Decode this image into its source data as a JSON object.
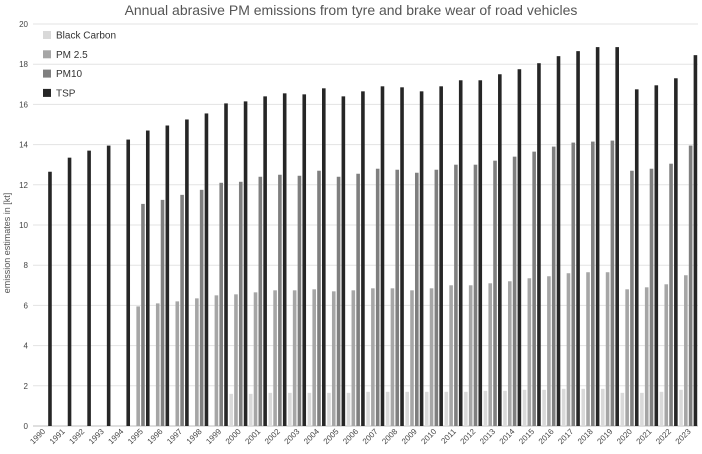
{
  "chart_data": {
    "type": "bar",
    "title": "Annual abrasive PM emissions from tyre and brake wear of road vehicles",
    "xlabel": "",
    "ylabel": "emission estimates in [kt]",
    "ylim": [
      0,
      20
    ],
    "yticks": [
      0,
      2,
      4,
      6,
      8,
      10,
      12,
      14,
      16,
      18,
      20
    ],
    "grid": "horizontal",
    "legend_position": "top-left",
    "categories": [
      "1990",
      "1991",
      "1992",
      "1993",
      "1994",
      "1995",
      "1996",
      "1997",
      "1998",
      "1999",
      "2000",
      "2001",
      "2002",
      "2003",
      "2004",
      "2005",
      "2006",
      "2007",
      "2008",
      "2009",
      "2010",
      "2011",
      "2012",
      "2013",
      "2014",
      "2015",
      "2016",
      "2017",
      "2018",
      "2019",
      "2020",
      "2021",
      "2022",
      "2023"
    ],
    "series": [
      {
        "name": "Black Carbon",
        "color": "#d9d9d9",
        "values": [
          null,
          null,
          null,
          null,
          null,
          null,
          null,
          null,
          null,
          null,
          1.6,
          1.6,
          1.65,
          1.65,
          1.65,
          1.65,
          1.65,
          1.7,
          1.7,
          1.7,
          1.7,
          1.7,
          1.7,
          1.75,
          1.75,
          1.8,
          1.8,
          1.85,
          1.85,
          1.85,
          1.65,
          1.65,
          1.7,
          1.8
        ]
      },
      {
        "name": "PM 2.5",
        "color": "#a6a6a6",
        "values": [
          null,
          null,
          null,
          null,
          null,
          5.95,
          6.1,
          6.2,
          6.35,
          6.5,
          6.55,
          6.65,
          6.75,
          6.75,
          6.8,
          6.7,
          6.75,
          6.85,
          6.85,
          6.75,
          6.85,
          7.0,
          7.0,
          7.1,
          7.2,
          7.35,
          7.45,
          7.6,
          7.65,
          7.65,
          6.8,
          6.9,
          7.05,
          7.5
        ]
      },
      {
        "name": "PM10",
        "color": "#7f7f7f",
        "values": [
          null,
          null,
          null,
          null,
          null,
          11.05,
          11.25,
          11.5,
          11.75,
          12.1,
          12.15,
          12.4,
          12.5,
          12.45,
          12.7,
          12.4,
          12.55,
          12.8,
          12.75,
          12.6,
          12.75,
          13.0,
          13.0,
          13.2,
          13.4,
          13.65,
          13.9,
          14.1,
          14.15,
          14.2,
          12.7,
          12.8,
          13.05,
          13.95
        ]
      },
      {
        "name": "TSP",
        "color": "#262626",
        "values": [
          12.65,
          13.35,
          13.7,
          13.95,
          14.25,
          14.7,
          14.95,
          15.25,
          15.55,
          16.05,
          16.15,
          16.4,
          16.55,
          16.5,
          16.8,
          16.4,
          16.65,
          16.9,
          16.85,
          16.65,
          16.9,
          17.2,
          17.2,
          17.5,
          17.75,
          18.05,
          18.4,
          18.65,
          18.85,
          18.85,
          16.75,
          16.95,
          17.3,
          18.45
        ]
      }
    ]
  }
}
